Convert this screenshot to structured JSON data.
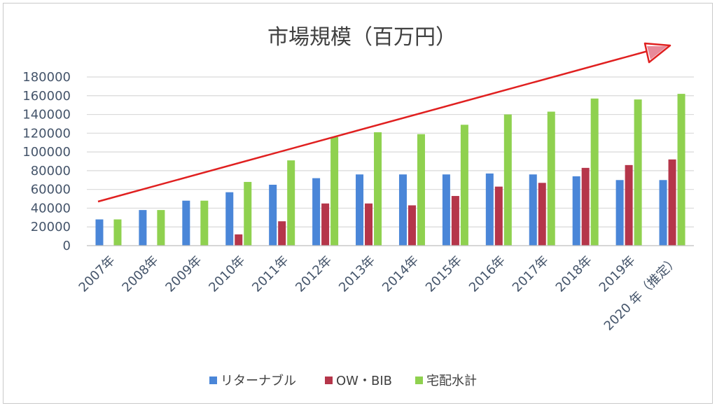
{
  "chart_data": {
    "type": "bar",
    "title": "市場規模（百万円）",
    "categories": [
      "2007年",
      "2008年",
      "2009年",
      "2010年",
      "2011年",
      "2012年",
      "2013年",
      "2014年",
      "2015年",
      "2016年",
      "2017年",
      "2018年",
      "2019年",
      "2020 年（推定）"
    ],
    "series": [
      {
        "name": "リターナブル",
        "color": "#4a86d8",
        "values": [
          28000,
          38000,
          48000,
          57000,
          65000,
          72000,
          76000,
          76000,
          76000,
          77000,
          76000,
          74000,
          70000,
          70000
        ]
      },
      {
        "name": "OW・BIB",
        "color": "#b5364a",
        "values": [
          0,
          0,
          0,
          12000,
          26000,
          45000,
          45000,
          43000,
          53000,
          63000,
          67000,
          83000,
          86000,
          92000
        ]
      },
      {
        "name": "宅配水計",
        "color": "#8fd14f",
        "values": [
          28000,
          38000,
          48000,
          68000,
          91000,
          116000,
          121000,
          119000,
          129000,
          140000,
          143000,
          157000,
          156000,
          162000
        ]
      }
    ],
    "ylim": [
      0,
      180000
    ],
    "yticks": [
      "0",
      "20000",
      "40000",
      "60000",
      "80000",
      "100000",
      "120000",
      "140000",
      "160000",
      "180000"
    ],
    "grid": true,
    "legend": "bottom",
    "annotations": [
      {
        "type": "arrow",
        "color": "#e02020",
        "description": "upward trend"
      }
    ]
  }
}
